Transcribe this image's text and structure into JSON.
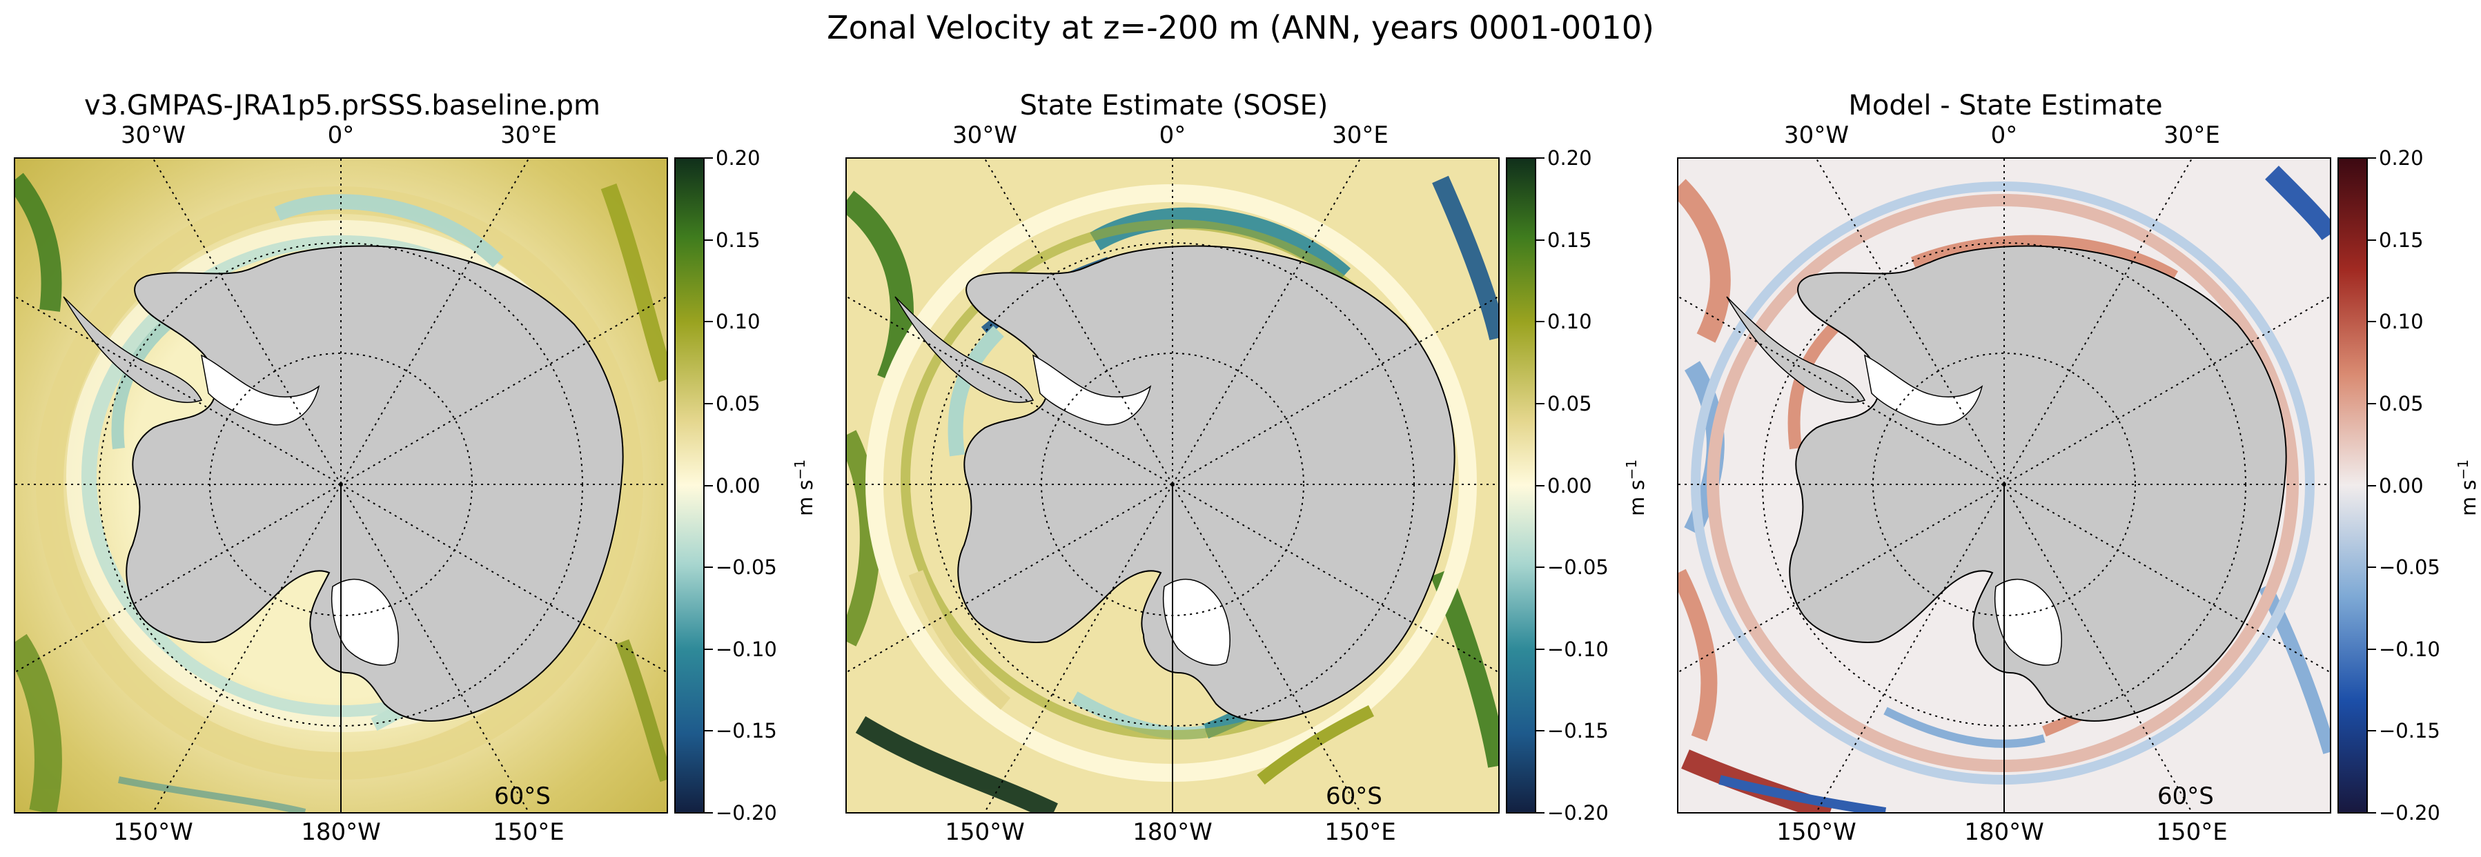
{
  "figure": {
    "title": "Zonal Velocity at z=-200 m (ANN, years 0001-0010)"
  },
  "longitude_labels": {
    "top": [
      "30°W",
      "0°",
      "30°E"
    ],
    "bottom": [
      "150°W",
      "180°W",
      "150°E"
    ]
  },
  "latitude_label": "60°S",
  "colorbar": {
    "ticks": [
      "0.20",
      "0.15",
      "0.10",
      "0.05",
      "0.00",
      "−0.05",
      "−0.10",
      "−0.15",
      "−0.20"
    ],
    "label": "m s",
    "label_exponent": "−1"
  },
  "panels": [
    {
      "title": "v3.GMPAS-JRA1p5.prSSS.baseline.pm",
      "colormap": "delta",
      "field": "model"
    },
    {
      "title": "State Estimate (SOSE)",
      "colormap": "delta",
      "field": "observations"
    },
    {
      "title": "Model - State Estimate",
      "colormap": "balance",
      "field": "difference"
    }
  ],
  "colors": {
    "land": "#c8c8c8",
    "ice_shelf": "#ffffff",
    "delta_ramp": [
      "#122040",
      "#1e5a8c",
      "#2f8a99",
      "#a8d6cf",
      "#fffadc",
      "#e4d68d",
      "#9aa320",
      "#3f7c1e",
      "#10301b"
    ],
    "balance_ramp": [
      "#18183e",
      "#1c4fa8",
      "#7ea9d5",
      "#f1ecec",
      "#d98b72",
      "#a12a22",
      "#3c0912"
    ]
  }
}
